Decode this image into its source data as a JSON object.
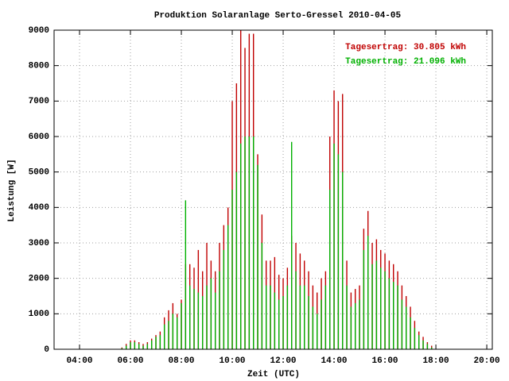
{
  "chart_data": {
    "type": "impulse",
    "title": "Produktion Solaranlage Serto-Gressel 2010-04-05",
    "x_label": "Zeit (UTC)",
    "y_label": "Leistung [W]",
    "x": [
      340,
      350,
      360,
      370,
      380,
      390,
      400,
      410,
      420,
      430,
      440,
      450,
      460,
      470,
      480,
      490,
      500,
      510,
      520,
      530,
      540,
      550,
      560,
      570,
      580,
      590,
      600,
      610,
      620,
      630,
      640,
      650,
      660,
      670,
      680,
      690,
      700,
      710,
      720,
      730,
      740,
      750,
      760,
      770,
      780,
      790,
      800,
      810,
      820,
      830,
      840,
      850,
      860,
      870,
      880,
      890,
      900,
      910,
      920,
      930,
      940,
      950,
      960,
      970,
      980,
      990,
      1000,
      1010,
      1020,
      1030,
      1040,
      1050,
      1060,
      1070
    ],
    "series": [
      {
        "name": "Tagesertrag: 30.805 kWh",
        "color": "#c00000",
        "values": [
          50,
          150,
          250,
          250,
          200,
          150,
          200,
          300,
          400,
          500,
          900,
          1100,
          1300,
          1000,
          1400,
          2400,
          2400,
          2300,
          2800,
          2200,
          3000,
          2500,
          2200,
          3000,
          3500,
          4000,
          7000,
          7500,
          9000,
          8500,
          8900,
          8900,
          5500,
          3800,
          2500,
          2500,
          2600,
          2100,
          2000,
          2300,
          3200,
          3000,
          2700,
          2500,
          2200,
          1800,
          1600,
          2000,
          2200,
          6000,
          7300,
          7000,
          7200,
          2500,
          1600,
          1700,
          1800,
          3400,
          3900,
          3000,
          3100,
          2800,
          2700,
          2500,
          2400,
          2200,
          1800,
          1500,
          1200,
          800,
          500,
          350,
          200,
          100
        ]
      },
      {
        "name": "Tagesertrag: 21.096 kWh",
        "color": "#00b000",
        "values": [
          30,
          100,
          200,
          200,
          150,
          100,
          150,
          250,
          350,
          400,
          700,
          800,
          1000,
          900,
          1300,
          4200,
          1800,
          1700,
          1600,
          1500,
          1800,
          2000,
          1600,
          2200,
          2800,
          3500,
          4500,
          5000,
          5800,
          6000,
          6000,
          6000,
          5200,
          3000,
          1800,
          1800,
          1600,
          1400,
          1500,
          1800,
          5850,
          2200,
          1800,
          1800,
          1500,
          1200,
          1000,
          1400,
          1800,
          4500,
          5800,
          5500,
          5000,
          1800,
          1200,
          1300,
          1400,
          2800,
          3200,
          2400,
          2500,
          2300,
          2200,
          2000,
          1900,
          1800,
          1400,
          1200,
          900,
          600,
          400,
          250,
          150,
          50
        ]
      }
    ],
    "xlim": [
      180,
      1213
    ],
    "xticks": [
      {
        "value": 240,
        "label": "04:00"
      },
      {
        "value": 360,
        "label": "06:00"
      },
      {
        "value": 480,
        "label": "08:00"
      },
      {
        "value": 600,
        "label": "10:00"
      },
      {
        "value": 720,
        "label": "12:00"
      },
      {
        "value": 840,
        "label": "14:00"
      },
      {
        "value": 960,
        "label": "16:00"
      },
      {
        "value": 1080,
        "label": "18:00"
      },
      {
        "value": 1200,
        "label": "20:00"
      }
    ],
    "ylim": [
      0,
      9000
    ],
    "yticks": [
      0,
      1000,
      2000,
      3000,
      4000,
      5000,
      6000,
      7000,
      8000,
      9000
    ],
    "grid": true
  }
}
